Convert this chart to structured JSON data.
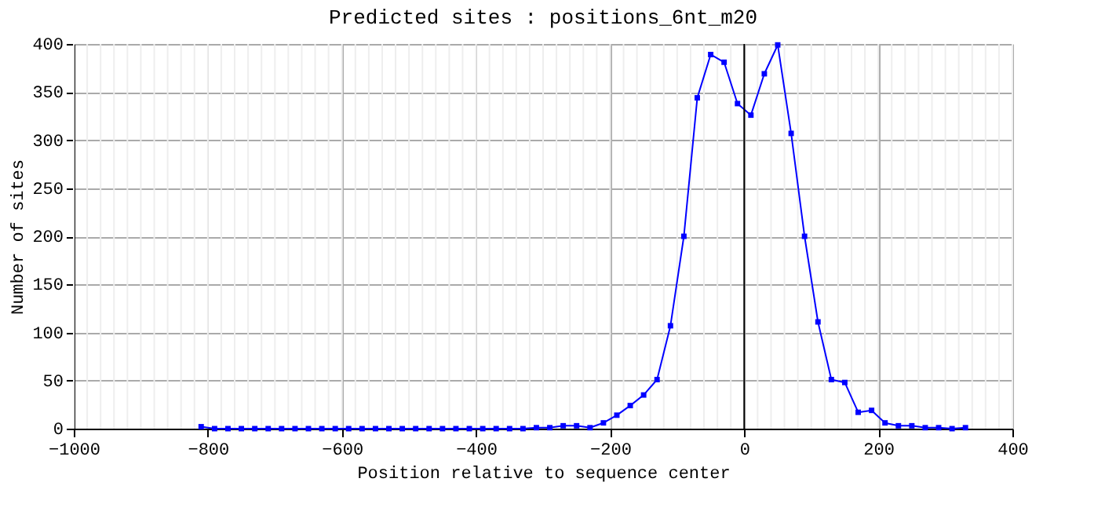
{
  "chart_data": {
    "type": "line",
    "title": "Predicted sites : positions_6nt_m20",
    "xlabel": "Position relative to sequence center",
    "ylabel": "Number of sites",
    "x": [
      -810,
      -790,
      -770,
      -750,
      -730,
      -710,
      -690,
      -670,
      -650,
      -630,
      -610,
      -590,
      -570,
      -550,
      -530,
      -510,
      -490,
      -470,
      -450,
      -430,
      -410,
      -390,
      -370,
      -350,
      -330,
      -310,
      -290,
      -270,
      -250,
      -230,
      -210,
      -190,
      -170,
      -150,
      -130,
      -110,
      -90,
      -70,
      -50,
      -30,
      -10,
      10,
      30,
      50,
      70,
      90,
      110,
      130,
      150,
      170,
      190,
      210,
      230,
      250,
      270,
      290,
      310,
      330
    ],
    "series": [
      {
        "color": "#0000ff",
        "values": [
          2,
          0,
          0,
          0,
          0,
          0,
          0,
          0,
          0,
          0,
          0,
          0,
          0,
          0,
          0,
          0,
          0,
          0,
          0,
          0,
          0,
          0,
          0,
          0,
          0,
          1,
          1,
          3,
          3,
          1,
          6,
          14,
          24,
          35,
          51,
          107,
          200,
          344,
          389,
          381,
          338,
          326,
          369,
          399,
          307,
          200,
          111,
          51,
          48,
          17,
          19,
          6,
          3,
          3,
          1,
          1,
          0,
          1
        ]
      }
    ],
    "xlim": [
      -1000,
      400
    ],
    "xticks": [
      -1000,
      -800,
      -600,
      -400,
      -200,
      0,
      200,
      400
    ],
    "ylim": [
      0,
      400
    ],
    "yticks": [
      0,
      50,
      100,
      150,
      200,
      250,
      300,
      350,
      400
    ],
    "grid": true,
    "marker": "square",
    "line_style": "solid",
    "ref_lines": [
      {
        "axis": "x",
        "value": 0,
        "color": "#000000"
      }
    ]
  }
}
